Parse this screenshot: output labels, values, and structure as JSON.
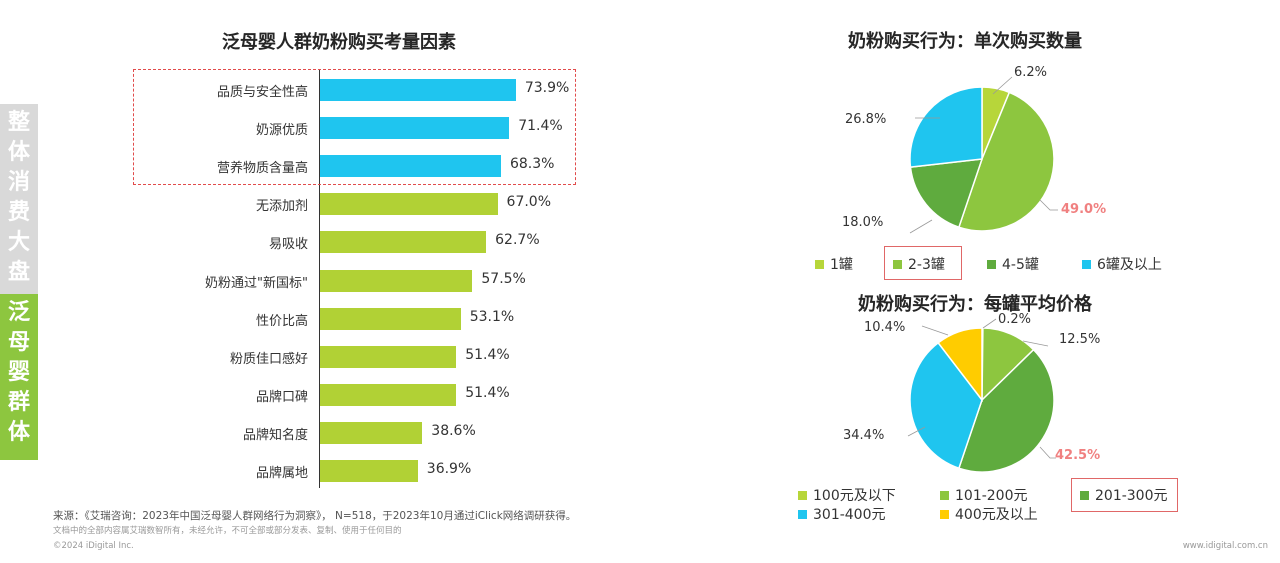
{
  "side_tabs": {
    "upper": "整体消费大盘",
    "lower": "泛母婴群体"
  },
  "colors": {
    "cyan": "#1fc5ef",
    "green": "#b1d135",
    "pie_lime": "#8dc63f",
    "pie_green": "#5fab3e",
    "pie_yellow": "#ffcc00",
    "pie_light": "#b7d63a",
    "highlight": "#e14b4b",
    "hot_label": "#f08080"
  },
  "chart_data": [
    {
      "type": "bar",
      "orientation": "horizontal",
      "title": "泛母婴人群奶粉购买考量因素",
      "categories": [
        "品质与安全性高",
        "奶源优质",
        "营养物质含量高",
        "无添加剂",
        "易吸收",
        "奶粉通过\"新国标\"",
        "性价比高",
        "粉质佳口感好",
        "品牌口碑",
        "品牌知名度",
        "品牌属地"
      ],
      "values": [
        73.9,
        71.4,
        68.3,
        67.0,
        62.7,
        57.5,
        53.1,
        51.4,
        51.4,
        38.6,
        36.9
      ],
      "value_labels": [
        "73.9%",
        "71.4%",
        "68.3%",
        "67.0%",
        "62.7%",
        "57.5%",
        "53.1%",
        "51.4%",
        "51.4%",
        "38.6%",
        "36.9%"
      ],
      "highlighted": [
        0,
        1,
        2
      ],
      "unit": "%"
    },
    {
      "type": "pie",
      "title": "奶粉购买行为：单次购买数量",
      "categories": [
        "1罐",
        "2-3罐",
        "4-5罐",
        "6罐及以上"
      ],
      "values": [
        6.2,
        49.0,
        18.0,
        26.8
      ],
      "value_labels": [
        "6.2%",
        "49.0%",
        "18.0%",
        "26.8%"
      ],
      "highlighted_legend": "2-3罐"
    },
    {
      "type": "pie",
      "title": "奶粉购买行为：每罐平均价格",
      "categories": [
        "100元及以下",
        "101-200元",
        "201-300元",
        "301-400元",
        "400元及以上"
      ],
      "values": [
        0.2,
        12.5,
        42.5,
        34.4,
        10.4
      ],
      "value_labels": [
        "0.2%",
        "12.5%",
        "42.5%",
        "34.4%",
        "10.4%"
      ],
      "highlighted_legend": "201-300元"
    }
  ],
  "footer": {
    "source": "来源：《艾瑞咨询：2023年中国泛母婴人群网络行为洞察》， N=518，于2023年10月通过iClick网络调研获得。",
    "disclaimer": "文档中的全部内容属艾瑞数智所有，未经允许，不可全部或部分发表、复制、使用于任何目的",
    "copyright": "©2024 iDigital Inc.",
    "site": "www.idigital.com.cn"
  }
}
